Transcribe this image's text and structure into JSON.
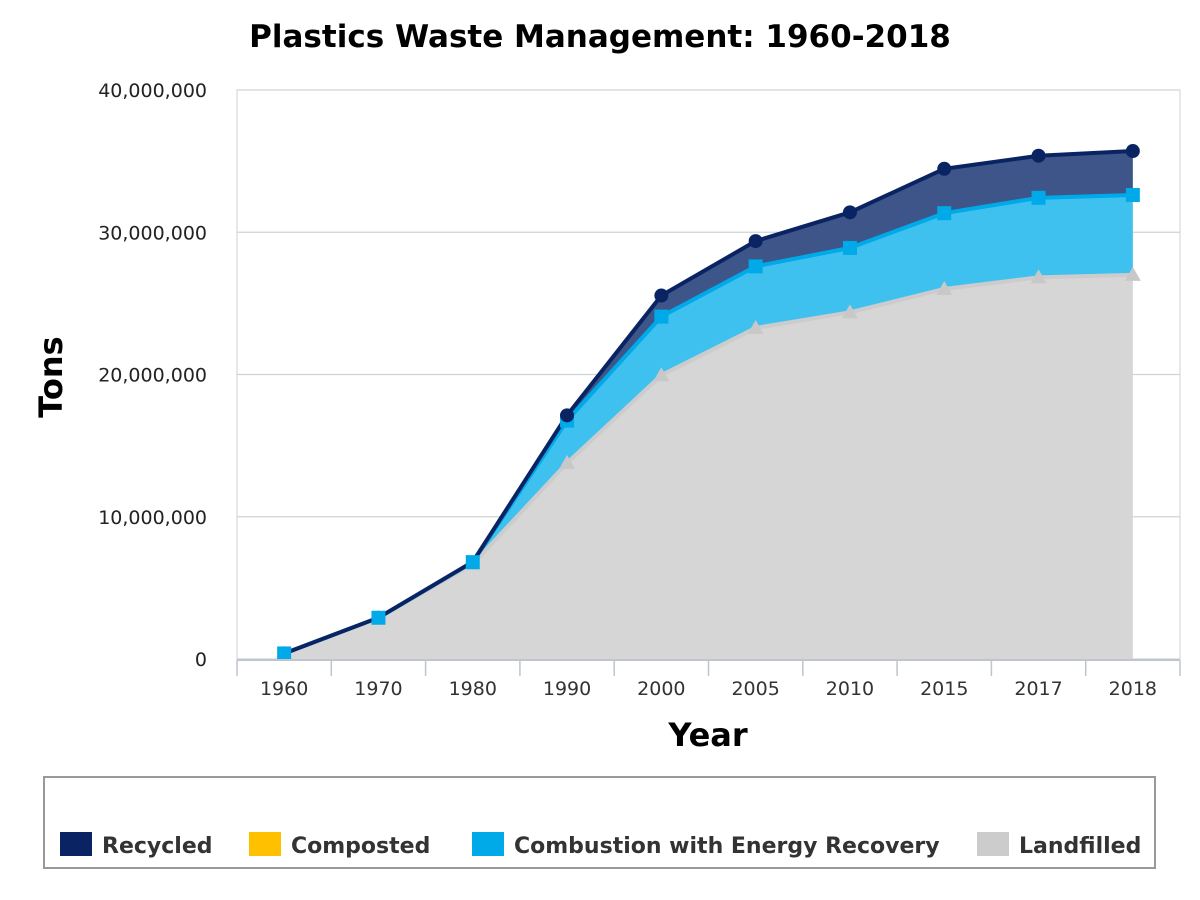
{
  "chart_data": {
    "type": "area",
    "title": "Plastics Waste Management: 1960-2018",
    "xlabel": "Year",
    "ylabel": "Tons",
    "categories": [
      "1960",
      "1970",
      "1980",
      "1990",
      "2000",
      "2005",
      "2010",
      "2015",
      "2017",
      "2018"
    ],
    "ylim": [
      0,
      40000000
    ],
    "yticks": [
      0,
      10000000,
      20000000,
      30000000,
      40000000
    ],
    "ytick_labels": [
      "0",
      "10,000,000",
      "20,000,000",
      "30,000,000",
      "40,000,000"
    ],
    "stacked": true,
    "grid": true,
    "legend_position": "bottom",
    "series": [
      {
        "name": "Landfilled",
        "color": "#cccccc",
        "marker": "triangle",
        "values": [
          390000,
          2900000,
          6670000,
          13780000,
          19950000,
          23270000,
          24370000,
          26010000,
          26830000,
          27000000
        ]
      },
      {
        "name": "Combustion with Energy Recovery",
        "color": "#00a9e8",
        "marker": "square",
        "values": [
          0,
          0,
          140000,
          2980000,
          4120000,
          4330000,
          4530000,
          5330000,
          5590000,
          5620000
        ]
      },
      {
        "name": "Composted",
        "color": "#ffc000",
        "marker": "none",
        "values": [
          0,
          0,
          0,
          0,
          0,
          0,
          0,
          0,
          0,
          0
        ]
      },
      {
        "name": "Recycled",
        "color": "#0a2463",
        "marker": "circle",
        "values": [
          0,
          0,
          20000,
          370000,
          1480000,
          1780000,
          2500000,
          3120000,
          2960000,
          3090000
        ]
      }
    ],
    "legend": [
      "Recycled",
      "Composted",
      "Combustion with Energy Recovery",
      "Landfilled"
    ]
  }
}
